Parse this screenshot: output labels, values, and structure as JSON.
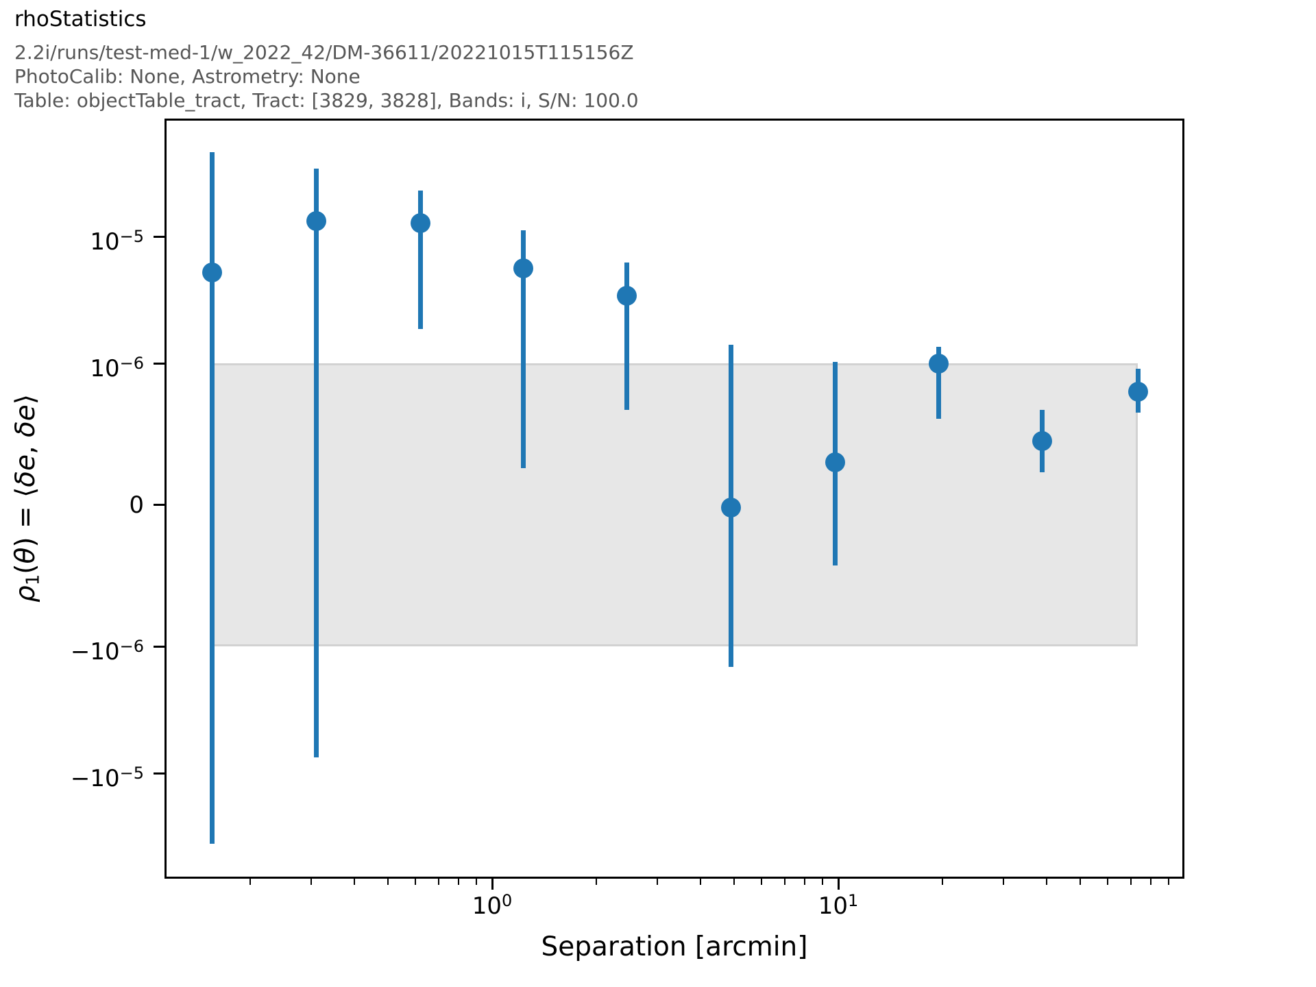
{
  "header": {
    "title": "rhoStatistics",
    "line1": "2.2i/runs/test-med-1/w_2022_42/DM-36611/20221015T115156Z",
    "line2": "PhotoCalib: None, Astrometry: None",
    "line3": "Table: objectTable_tract, Tract: [3829, 3828], Bands: i, S/N: 100.0"
  },
  "colors": {
    "accent": "#1f77b4",
    "band_fill": "#e7e7e7",
    "band_edge": "#d2d2d2",
    "gray": "#565656",
    "axis": "#000000"
  },
  "chart_data": {
    "type": "scatter",
    "title": "rhoStatistics",
    "xlabel": "Separation [arcmin]",
    "ylabel": "ρ1(θ) = ⟨δe, δe⟩",
    "ylabel_parts": [
      {
        "t": "ρ",
        "i": true
      },
      {
        "t": "1",
        "sub": true
      },
      {
        "t": "(",
        "i": false
      },
      {
        "t": "θ",
        "i": true
      },
      {
        "t": ") = ",
        "i": false
      },
      {
        "t": "⟨",
        "i": false
      },
      {
        "t": "δe",
        "i": true
      },
      {
        "t": ", ",
        "i": false
      },
      {
        "t": "δe",
        "i": true
      },
      {
        "t": "⟩",
        "i": false
      }
    ],
    "x_scale": "log",
    "y_scale": "symlog",
    "y_linthresh": 1e-06,
    "xlim": [
      0.113,
      98
    ],
    "ylim": [
      -6.8e-05,
      8.5e-05
    ],
    "grid": false,
    "legend": null,
    "x": [
      0.155,
      0.31,
      0.62,
      1.23,
      2.45,
      4.9,
      9.8,
      19.5,
      38.8,
      73.5
    ],
    "y": [
      5.2e-06,
      1.32e-05,
      1.28e-05,
      5.6e-06,
      3.4e-06,
      -2e-08,
      3e-07,
      1e-06,
      4.5e-07,
      8e-07
    ],
    "y_hi": [
      4.6e-05,
      3.45e-05,
      2.3e-05,
      1.12e-05,
      6.2e-06,
      1.4e-06,
      1.02e-06,
      1.35e-06,
      6.7e-07,
      9.6e-07
    ],
    "y_lo": [
      -3.6e-05,
      -7.5e-06,
      1.87e-06,
      2.6e-07,
      6.7e-07,
      -1.45e-06,
      -4.3e-07,
      6.1e-07,
      2.3e-07,
      6.5e-07
    ],
    "band": {
      "y_min": -1e-06,
      "y_max": 1e-06,
      "x_min": 0.155,
      "x_max": 73.5
    },
    "x_major_ticks": [
      {
        "v": 1,
        "base": "10",
        "exp": "0"
      },
      {
        "v": 10,
        "base": "10",
        "exp": "1"
      }
    ],
    "y_major_ticks": [
      {
        "v": 1e-05,
        "base": "10",
        "exp": "−5"
      },
      {
        "v": 1e-06,
        "base": "10",
        "exp": "−6"
      },
      {
        "v": 0,
        "base": "0",
        "exp": ""
      },
      {
        "v": -1e-06,
        "base": "−10",
        "exp": "−6"
      },
      {
        "v": -1e-05,
        "base": "−10",
        "exp": "−5"
      }
    ]
  }
}
